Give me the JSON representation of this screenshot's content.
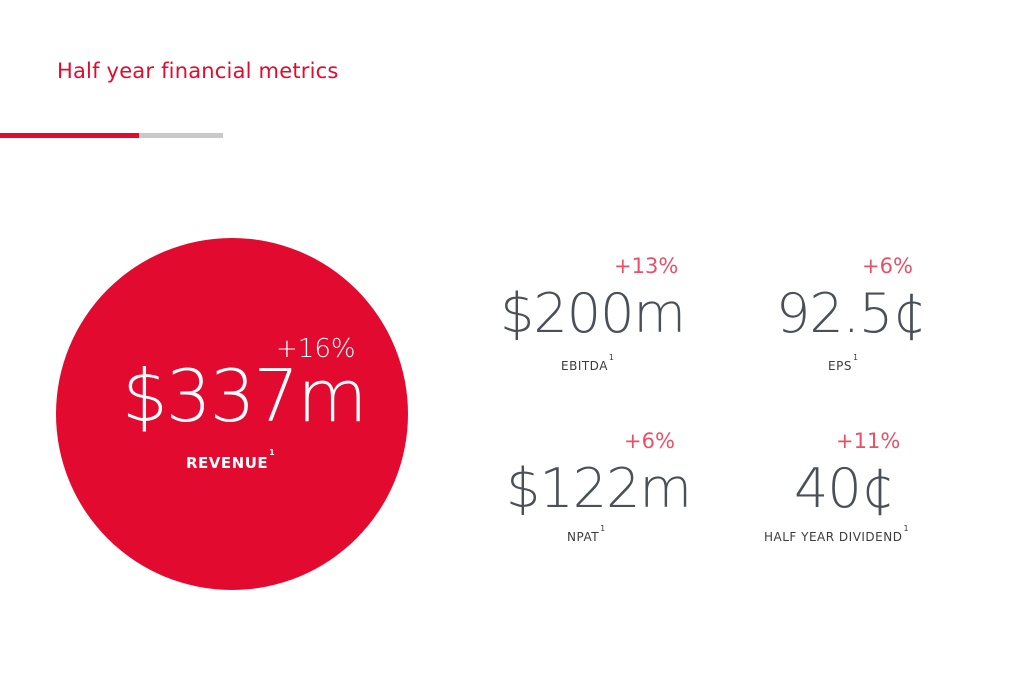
{
  "page": {
    "title": "Half year financial metrics"
  },
  "hero": {
    "change": "+16%",
    "value": "$337m",
    "label": "REVENUE",
    "footnote": "1"
  },
  "metrics": [
    {
      "change": "+13%",
      "value": "$200m",
      "label": "EBITDA",
      "footnote": "1"
    },
    {
      "change": "+6%",
      "value": "92.5¢",
      "label": "EPS",
      "footnote": "1"
    },
    {
      "change": "+6%",
      "value": "$122m",
      "label": "NPAT",
      "footnote": "1"
    },
    {
      "change": "+11%",
      "value": "40¢",
      "label": "HALF YEAR DIVIDEND",
      "footnote": "1"
    }
  ],
  "colors": {
    "accent": "#e20b2f",
    "change_text": "#e8506a",
    "value_text": "#4a5058",
    "rule_grey": "#c9c9c9"
  }
}
